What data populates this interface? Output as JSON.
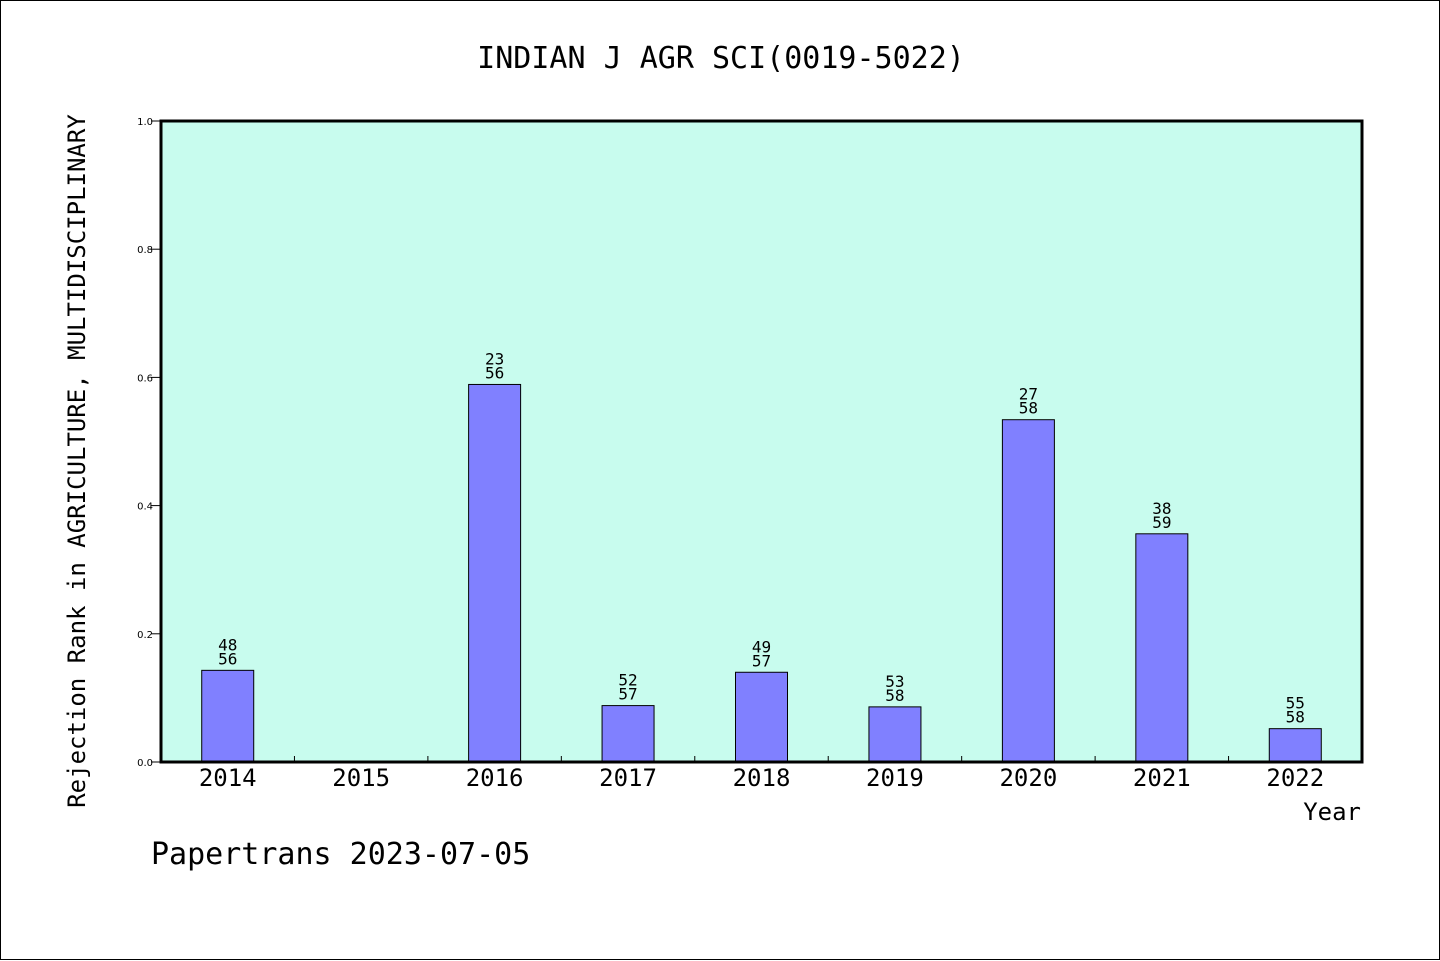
{
  "chart_data": {
    "type": "bar",
    "title": "INDIAN J AGR SCI(0019-5022)",
    "xlabel": "Year",
    "ylabel": "Rejection Rank in AGRICULTURE, MULTIDISCIPLINARY",
    "categories": [
      "2014",
      "2015",
      "2016",
      "2017",
      "2018",
      "2019",
      "2020",
      "2021",
      "2022"
    ],
    "values": [
      0.143,
      null,
      0.589,
      0.088,
      0.14,
      0.086,
      0.534,
      0.356,
      0.052
    ],
    "bar_labels": [
      [
        "48",
        "56"
      ],
      null,
      [
        "23",
        "56"
      ],
      [
        "52",
        "57"
      ],
      [
        "49",
        "57"
      ],
      [
        "53",
        "58"
      ],
      [
        "27",
        "58"
      ],
      [
        "38",
        "59"
      ],
      [
        "55",
        "58"
      ]
    ],
    "ylim": [
      0,
      1.0
    ],
    "yticks": [
      "0.0",
      "0.2",
      "0.4",
      "0.6",
      "0.8",
      "1.0"
    ],
    "grid": false,
    "legend": "none",
    "footer": "Papertrans 2023-07-05"
  },
  "colors": {
    "plot_background": "#c8fcee",
    "bar_fill": "#8080ff",
    "bar_stroke": "#000000",
    "text": "#000000"
  }
}
